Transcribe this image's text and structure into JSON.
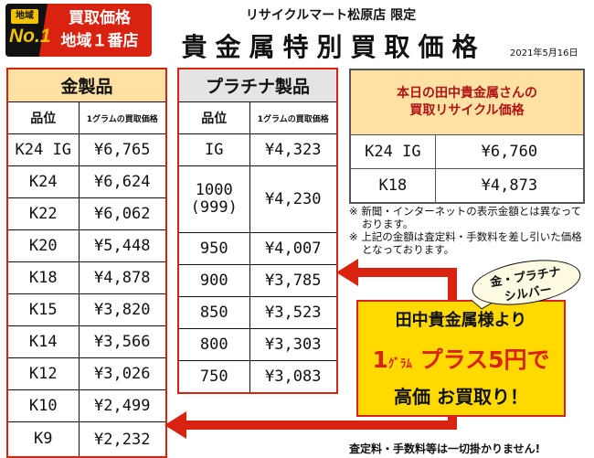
{
  "badge": {
    "area": "地域",
    "no1": "No.1",
    "line1": "買取価格",
    "line2": "地域１番店"
  },
  "header": {
    "store": "リサイクルマート松原店 限定",
    "title": "貴金属特別買取価格",
    "date": "2021年5月16日"
  },
  "gold": {
    "title": "金製品",
    "col1": "品位",
    "col2": "1グラムの買取価格",
    "rows": [
      {
        "name": "K24 IG",
        "price": "¥6,765"
      },
      {
        "name": "K24",
        "price": "¥6,624"
      },
      {
        "name": "K22",
        "price": "¥6,062"
      },
      {
        "name": "K20",
        "price": "¥5,448"
      },
      {
        "name": "K18",
        "price": "¥4,878"
      },
      {
        "name": "K15",
        "price": "¥3,820"
      },
      {
        "name": "K14",
        "price": "¥3,566"
      },
      {
        "name": "K12",
        "price": "¥3,026"
      },
      {
        "name": "K10",
        "price": "¥2,499"
      },
      {
        "name": "K9",
        "price": "¥2,232"
      }
    ]
  },
  "platinum": {
    "title": "プラチナ製品",
    "col1": "品位",
    "col2": "1グラムの買取価格",
    "rows": [
      {
        "name": "IG",
        "price": "¥4,323"
      },
      {
        "name": "1000\n(999)",
        "price": "¥4,230"
      },
      {
        "name": "950",
        "price": "¥4,007"
      },
      {
        "name": "900",
        "price": "¥3,785"
      },
      {
        "name": "850",
        "price": "¥3,523"
      },
      {
        "name": "800",
        "price": "¥3,303"
      },
      {
        "name": "750",
        "price": "¥3,083"
      }
    ]
  },
  "today": {
    "line1": "本日の田中貴金属さんの",
    "line2": "買取リサイクル価格",
    "rows": [
      {
        "name": "K24 IG",
        "price": "¥6,760"
      },
      {
        "name": "K18",
        "price": "¥4,873"
      }
    ]
  },
  "notes": [
    "※ 新聞・インターネットの表示金額とは異なっております。",
    "※ 上記の金額は査定料・手数料を差し引いた価格となっております。"
  ],
  "promo": {
    "bubble1": "金・プラチナ",
    "bubble2": "シルバー",
    "line1": "田中貴金属様より",
    "line2_a": "1",
    "line2_unit": "ｸﾞﾗﾑ",
    "line2_b": " プラス5円で",
    "line3": "高価 お買取り！"
  },
  "footer": "査定料・手数料等は一切掛かりません!",
  "colors": {
    "accent_red": "#d9220f",
    "promo_yellow": "#ffd900",
    "gold_header": "#ffe2a3",
    "platinum_header": "#e4e4e4"
  }
}
